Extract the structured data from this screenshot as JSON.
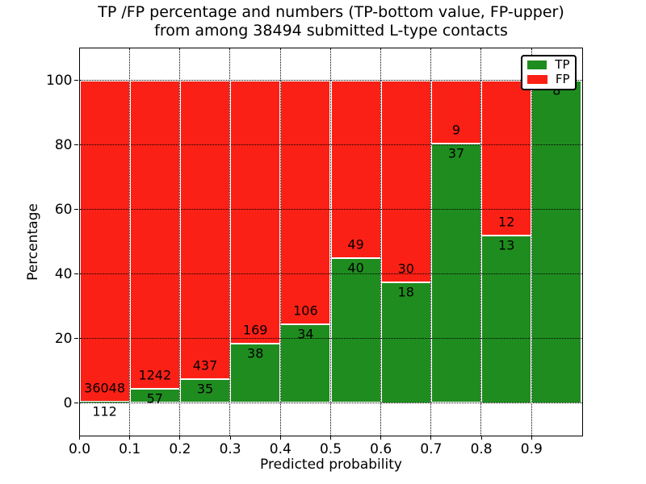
{
  "chart_data": {
    "type": "bar",
    "subtype": "stacked-100-percent",
    "title": "TP /FP percentage and numbers (TP-bottom value, FP-upper)\nfrom among 38494 submitted L-type contacts",
    "title_line1": "TP /FP percentage and numbers (TP-bottom value, FP-upper)",
    "title_line2": "from among 38494 submitted L-type contacts",
    "xlabel": "Predicted probability",
    "ylabel": "Percentage",
    "total_contacts": 38494,
    "xlim": [
      0.0,
      1.0
    ],
    "ylim": [
      -10,
      110
    ],
    "grid": true,
    "grid_style": "dotted",
    "x_tick_labels": [
      "0.0",
      "0.1",
      "0.2",
      "0.3",
      "0.4",
      "0.5",
      "0.6",
      "0.7",
      "0.8",
      "0.9"
    ],
    "y_ticks": [
      0,
      20,
      40,
      60,
      80,
      100
    ],
    "categories": [
      "0.0-0.1",
      "0.1-0.2",
      "0.2-0.3",
      "0.3-0.4",
      "0.4-0.5",
      "0.5-0.6",
      "0.6-0.7",
      "0.7-0.8",
      "0.8-0.9",
      "0.9-1.0"
    ],
    "series": [
      {
        "name": "TP",
        "color": "#1f8c1f",
        "values": [
          112,
          57,
          35,
          38,
          34,
          40,
          18,
          37,
          13,
          8
        ]
      },
      {
        "name": "FP",
        "color": "#fb2015",
        "values": [
          36048,
          1242,
          437,
          169,
          106,
          49,
          30,
          9,
          12,
          0
        ]
      }
    ],
    "tp_percentages": [
      0.31,
      4.39,
      7.42,
      18.36,
      24.29,
      44.94,
      37.5,
      80.43,
      52.0,
      100.0
    ],
    "legend_position": "upper right",
    "legend": [
      {
        "label": "TP",
        "color": "#1f8c1f"
      },
      {
        "label": "FP",
        "color": "#fb2015"
      }
    ],
    "bar_edge_color": "#ffffff",
    "axis_color": "#000000"
  }
}
